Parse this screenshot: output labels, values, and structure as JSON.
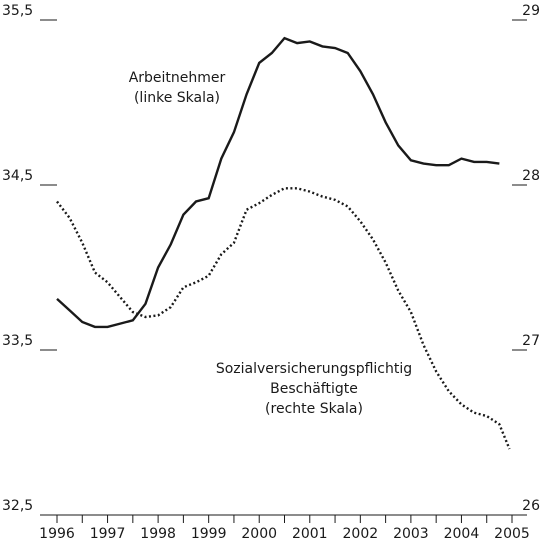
{
  "chart_data": {
    "type": "line",
    "xlim": [
      1996,
      2005
    ],
    "xticks": [
      1996,
      1997,
      1998,
      1999,
      2000,
      2001,
      2002,
      2003,
      2004,
      2005
    ],
    "xminorticks": [
      1996.5,
      1997.5,
      1998.5,
      1999.5,
      2000.5,
      2001.5,
      2002.5,
      2003.5,
      2004.5
    ],
    "ylim": [
      32.5,
      35.5
    ],
    "yticks": [
      {
        "value": 32.5,
        "label": "32,5"
      },
      {
        "value": 33.5,
        "label": "33,5"
      },
      {
        "value": 34.5,
        "label": "34,5"
      },
      {
        "value": 35.5,
        "label": "35,5"
      }
    ],
    "y2lim": [
      26,
      29
    ],
    "y2ticks": [
      26,
      27,
      28,
      29
    ],
    "series": [
      {
        "name": "Arbeitnehmer",
        "color": "#1a1a1a",
        "dash": "solid",
        "x": [
          1996,
          1996.25,
          1996.5,
          1996.75,
          1997,
          1997.25,
          1997.5,
          1997.75,
          1998,
          1998.25,
          1998.5,
          1998.75,
          1999,
          1999.25,
          1999.5,
          1999.75,
          2000,
          2000.25,
          2000.5,
          2000.75,
          2001,
          2001.25,
          2001.5,
          2001.75,
          2002,
          2002.25,
          2002.5,
          2002.75,
          2003,
          2003.25,
          2003.5,
          2003.75,
          2004,
          2004.25,
          2004.5,
          2004.75
        ],
        "values": [
          33.81,
          33.74,
          33.67,
          33.64,
          33.64,
          33.66,
          33.68,
          33.78,
          34.0,
          34.14,
          34.32,
          34.4,
          34.42,
          34.66,
          34.82,
          35.05,
          35.24,
          35.3,
          35.39,
          35.36,
          35.37,
          35.34,
          35.33,
          35.3,
          35.19,
          35.05,
          34.88,
          34.74,
          34.65,
          34.63,
          34.62,
          34.62,
          34.66,
          34.64,
          34.64,
          34.63
        ]
      },
      {
        "name": "Sozialversicherungspflichtig Beschäftigte",
        "color": "#1a1a1a",
        "dash": "dotted",
        "axis": "y2",
        "x": [
          1996,
          1996.25,
          1996.5,
          1996.75,
          1997,
          1997.25,
          1997.5,
          1997.75,
          1998,
          1998.25,
          1998.5,
          1998.75,
          1999,
          1999.25,
          1999.5,
          1999.75,
          2000,
          2000.25,
          2000.5,
          2000.75,
          2001,
          2001.25,
          2001.5,
          2001.75,
          2002,
          2002.25,
          2002.5,
          2002.75,
          2003,
          2003.25,
          2003.5,
          2003.75,
          2004,
          2004.25,
          2004.5,
          2004.75,
          2004.95
        ],
        "values": [
          27.9,
          27.8,
          27.65,
          27.47,
          27.41,
          27.32,
          27.23,
          27.2,
          27.21,
          27.26,
          27.38,
          27.41,
          27.45,
          27.58,
          27.65,
          27.85,
          27.89,
          27.94,
          27.98,
          27.98,
          27.96,
          27.93,
          27.91,
          27.87,
          27.78,
          27.67,
          27.53,
          27.36,
          27.23,
          27.03,
          26.87,
          26.75,
          26.67,
          26.62,
          26.6,
          26.55,
          26.4
        ]
      }
    ],
    "annotations": [
      {
        "lines": [
          "Arbeitnehmer",
          "(linke Skala)"
        ]
      },
      {
        "lines": [
          "Sozialversicherungspflichtig",
          "Beschäftigte",
          "(rechte Skala)"
        ]
      }
    ]
  }
}
